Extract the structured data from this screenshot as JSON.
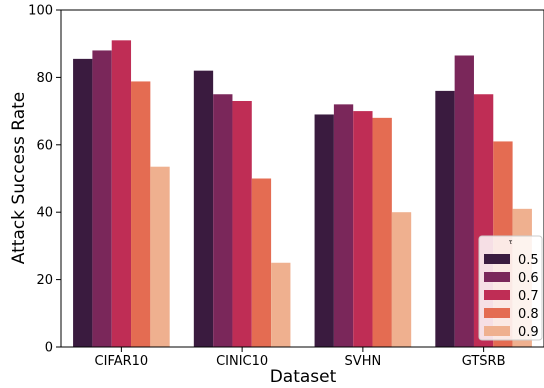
{
  "chart_data": {
    "type": "bar",
    "title": "",
    "xlabel": "Dataset",
    "ylabel": "Attack Success Rate",
    "ylim": [
      0,
      100
    ],
    "yticks": [
      0,
      20,
      40,
      60,
      80,
      100
    ],
    "categories": [
      "CIFAR10",
      "CINIC10",
      "SVHN",
      "GTSRB"
    ],
    "legend": {
      "title": "τ",
      "placement": "lower-right"
    },
    "grid": false,
    "series": [
      {
        "name": "0.5",
        "color": "#3a1b3f",
        "values": [
          85.5,
          82.0,
          69.0,
          76.0
        ]
      },
      {
        "name": "0.6",
        "color": "#7a275a",
        "values": [
          88.0,
          75.0,
          72.0,
          86.5
        ]
      },
      {
        "name": "0.7",
        "color": "#bf2d55",
        "values": [
          91.0,
          73.0,
          70.0,
          75.0
        ]
      },
      {
        "name": "0.8",
        "color": "#e46c52",
        "values": [
          78.8,
          50.0,
          68.0,
          61.0
        ]
      },
      {
        "name": "0.9",
        "color": "#efb08f",
        "values": [
          53.5,
          25.0,
          40.0,
          41.0
        ]
      }
    ]
  }
}
